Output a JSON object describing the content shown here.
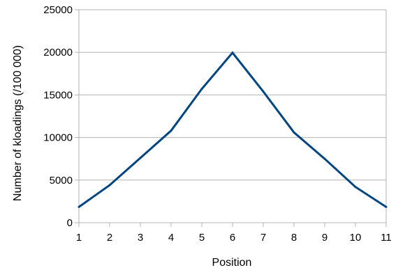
{
  "chart_data": {
    "type": "line",
    "title": "",
    "xlabel": "Position",
    "ylabel": "Number of kloadings (/100 000)",
    "x": [
      1,
      2,
      3,
      4,
      5,
      6,
      7,
      8,
      9,
      10,
      11
    ],
    "series": [
      {
        "values": [
          1850,
          4400,
          7600,
          10800,
          15700,
          19950,
          15400,
          10600,
          7500,
          4200,
          1850
        ],
        "color": "#004586"
      }
    ],
    "ylim": [
      0,
      25000
    ],
    "yticks": [
      0,
      5000,
      10000,
      15000,
      20000,
      25000
    ],
    "xlim": [
      1,
      11
    ],
    "xticks": [
      1,
      2,
      3,
      4,
      5,
      6,
      7,
      8,
      9,
      10,
      11
    ],
    "grid": "horizontal",
    "grid_color": "#b3b3b3",
    "legend": "none"
  }
}
